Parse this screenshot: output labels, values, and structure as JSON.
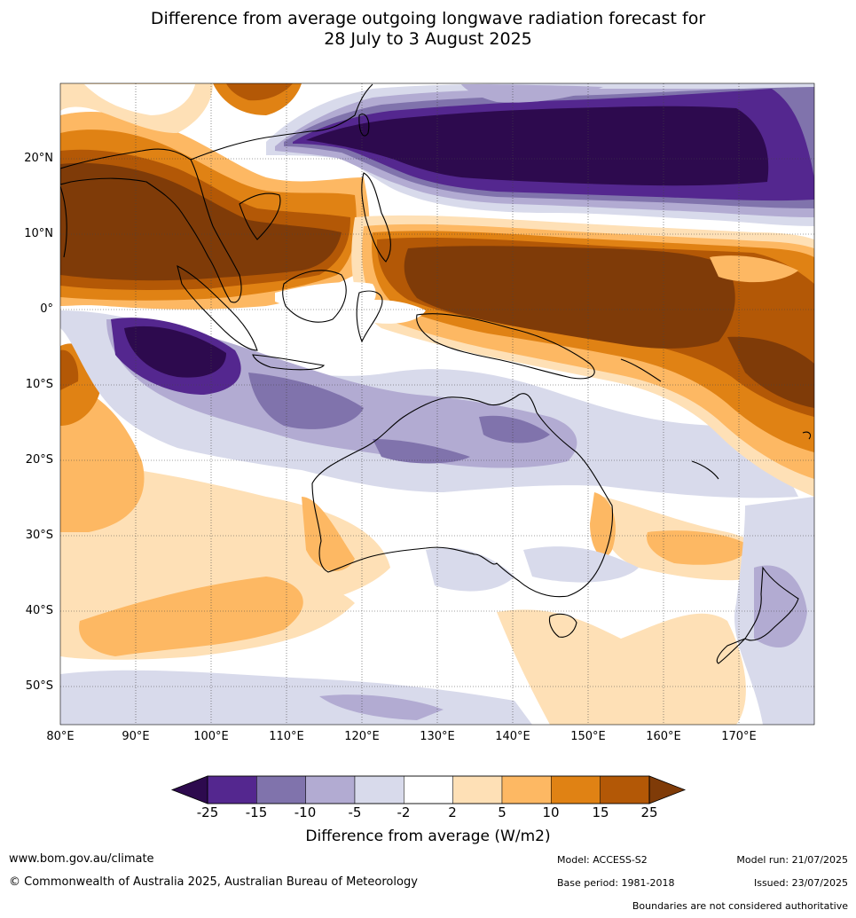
{
  "title": {
    "line1": "Difference from average outgoing longwave radiation forecast for",
    "line2": "28 July to 3 August 2025"
  },
  "map": {
    "lat_labels": [
      "20°N",
      "10°N",
      "0°",
      "10°S",
      "20°S",
      "30°S",
      "40°S",
      "50°S"
    ],
    "lon_labels": [
      "80°E",
      "90°E",
      "100°E",
      "110°E",
      "120°E",
      "130°E",
      "140°E",
      "150°E",
      "160°E",
      "170°E"
    ],
    "lon_range": [
      80,
      180
    ],
    "lat_range": [
      -55,
      30
    ]
  },
  "colorbar": {
    "ticks": [
      "-25",
      "-15",
      "-10",
      "-5",
      "-2",
      "2",
      "5",
      "10",
      "15",
      "25"
    ],
    "colors": [
      "#2d0a4e",
      "#54278f",
      "#8073ac",
      "#b2abd2",
      "#d8daeb",
      "#ffffff",
      "#fee0b6",
      "#fdb863",
      "#e08214",
      "#b35806",
      "#7f3b08"
    ],
    "label": "Difference from average (W/m2)"
  },
  "footer": {
    "url": "www.bom.gov.au/climate",
    "copyright": "© Commonwealth of Australia 2025, Australian Bureau of Meteorology",
    "model": "Model: ACCESS-S2",
    "base_period": "Base period: 1981-2018",
    "model_run": "Model run: 21/07/2025",
    "issued": "Issued: 23/07/2025",
    "disclaimer": "Boundaries are not considered authoritative"
  }
}
